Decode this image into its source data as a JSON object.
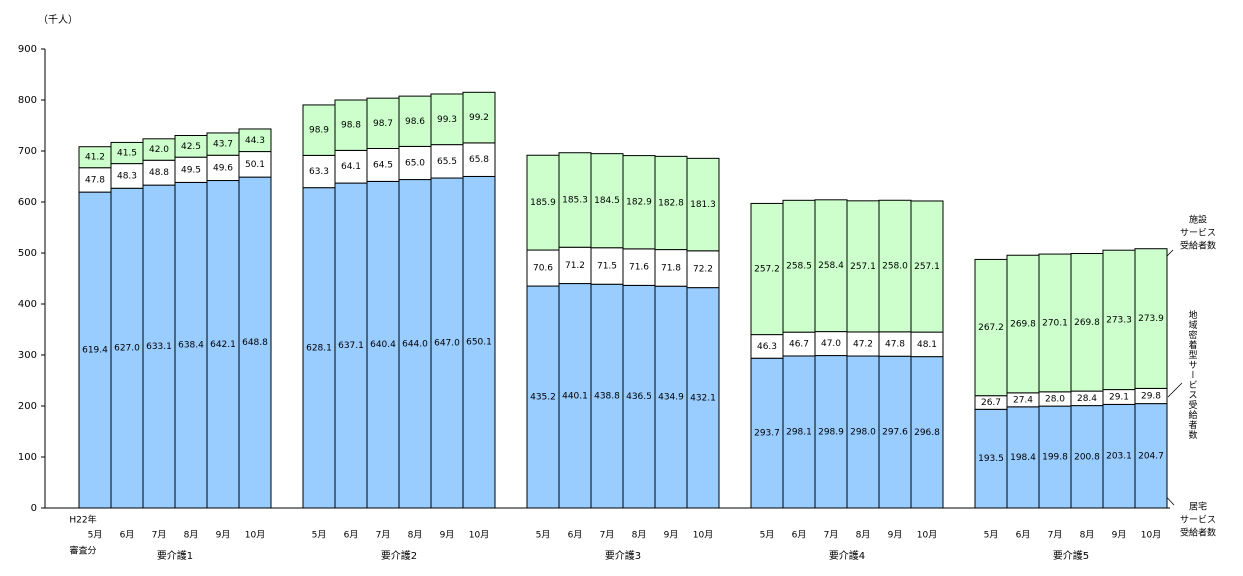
{
  "chart_data": {
    "type": "bar",
    "stacked": true,
    "y_unit": "（千人）",
    "ylim": [
      0,
      900
    ],
    "yticks": [
      0,
      100,
      200,
      300,
      400,
      500,
      600,
      700,
      800,
      900
    ],
    "first_category_prefix": "H22年",
    "first_category_suffix": "審査分",
    "series": [
      {
        "name": [
          "居宅",
          "サービス",
          "受給者数"
        ],
        "color": "#99ccff"
      },
      {
        "name": "地域密着型サービス受給者数",
        "color": "#ffffff"
      },
      {
        "name": [
          "施設",
          "サービス",
          "受給者数"
        ],
        "color": "#ccffcc"
      }
    ],
    "groups": [
      {
        "name": "要介護1",
        "categories": [
          "5月",
          "6月",
          "7月",
          "8月",
          "9月",
          "10月"
        ],
        "series": [
          {
            "values": [
              619.4,
              627.0,
              633.1,
              638.4,
              642.1,
              648.8
            ],
            "value_labels": [
              "619.4",
              "627.0",
              "633.1",
              "638.4",
              "642.1",
              "648.8"
            ]
          },
          {
            "values": [
              47.8,
              48.3,
              48.8,
              49.5,
              49.6,
              50.1
            ],
            "value_labels": [
              "47.8",
              "48.3",
              "48.8",
              "49.5",
              "49.6",
              "50.1"
            ]
          },
          {
            "values": [
              41.2,
              41.5,
              42.0,
              42.5,
              43.7,
              44.3
            ],
            "value_labels": [
              "41.2",
              "41.5",
              "42.0",
              "42.5",
              "43.7",
              "44.3"
            ]
          }
        ]
      },
      {
        "name": "要介護2",
        "categories": [
          "5月",
          "6月",
          "7月",
          "8月",
          "9月",
          "10月"
        ],
        "series": [
          {
            "values": [
              628.1,
              637.1,
              640.4,
              644.0,
              647.0,
              650.1
            ],
            "value_labels": [
              "628.1",
              "637.1",
              "640.4",
              "644.0",
              "647.0",
              "650.1"
            ]
          },
          {
            "values": [
              63.3,
              64.1,
              64.5,
              65.0,
              65.5,
              65.8
            ],
            "value_labels": [
              "63.3",
              "64.1",
              "64.5",
              "65.0",
              "65.5",
              "65.8"
            ]
          },
          {
            "values": [
              98.9,
              98.8,
              98.7,
              98.6,
              99.3,
              99.2
            ],
            "value_labels": [
              "98.9",
              "98.8",
              "98.7",
              "98.6",
              "99.3",
              "99.2"
            ]
          }
        ]
      },
      {
        "name": "要介護3",
        "categories": [
          "5月",
          "6月",
          "7月",
          "8月",
          "9月",
          "10月"
        ],
        "series": [
          {
            "values": [
              435.2,
              440.1,
              438.8,
              436.5,
              434.9,
              432.1
            ],
            "value_labels": [
              "435.2",
              "440.1",
              "438.8",
              "436.5",
              "434.9",
              "432.1"
            ]
          },
          {
            "values": [
              70.6,
              71.2,
              71.5,
              71.6,
              71.8,
              72.2
            ],
            "value_labels": [
              "70.6",
              "71.2",
              "71.5",
              "71.6",
              "71.8",
              "72.2"
            ]
          },
          {
            "values": [
              185.9,
              185.3,
              184.5,
              182.9,
              182.8,
              181.3
            ],
            "value_labels": [
              "185.9",
              "185.3",
              "184.5",
              "182.9",
              "182.8",
              "181.3"
            ]
          }
        ]
      },
      {
        "name": "要介護4",
        "categories": [
          "5月",
          "6月",
          "7月",
          "8月",
          "9月",
          "10月"
        ],
        "series": [
          {
            "values": [
              293.7,
              298.1,
              298.9,
              298.0,
              297.6,
              296.8
            ],
            "value_labels": [
              "293.7",
              "298.1",
              "298.9",
              "298.0",
              "297.6",
              "296.8"
            ]
          },
          {
            "values": [
              46.3,
              46.7,
              47.0,
              47.2,
              47.8,
              48.1
            ],
            "value_labels": [
              "46.3",
              "46.7",
              "47.0",
              "47.2",
              "47.8",
              "48.1"
            ]
          },
          {
            "values": [
              257.2,
              258.5,
              258.4,
              257.1,
              258.0,
              257.1
            ],
            "value_labels": [
              "257.2",
              "258.5",
              "258.4",
              "257.1",
              "258.0",
              "257.1"
            ]
          }
        ]
      },
      {
        "name": "要介護5",
        "categories": [
          "5月",
          "6月",
          "7月",
          "8月",
          "9月",
          "10月"
        ],
        "series": [
          {
            "values": [
              193.5,
              198.4,
              199.8,
              200.8,
              203.1,
              204.7
            ],
            "value_labels": [
              "193.5",
              "198.4",
              "199.8",
              "200.8",
              "203.1",
              "204.7"
            ]
          },
          {
            "values": [
              26.7,
              27.4,
              28.0,
              28.4,
              29.1,
              29.8
            ],
            "value_labels": [
              "26.7",
              "27.4",
              "28.0",
              "28.4",
              "29.1",
              "29.8"
            ]
          },
          {
            "values": [
              267.2,
              269.8,
              270.1,
              269.8,
              273.3,
              273.9
            ],
            "value_labels": [
              "267.2",
              "269.8",
              "270.1",
              "269.8",
              "273.3",
              "273.9"
            ]
          }
        ]
      }
    ]
  }
}
